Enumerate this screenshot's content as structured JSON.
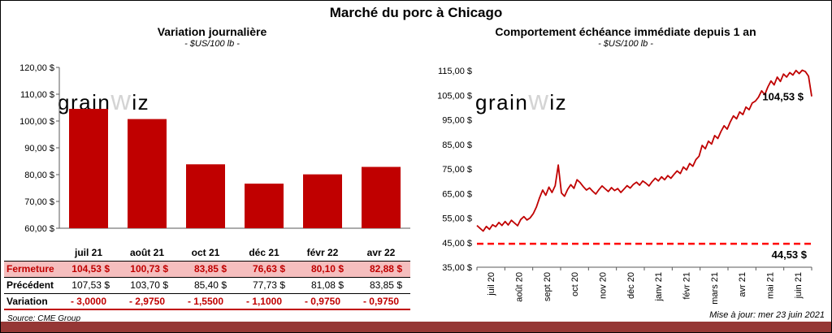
{
  "page": {
    "title": "Marché du porc à Chicago"
  },
  "watermark": "grainwiz",
  "footer": {
    "source": "Source: CME Group",
    "updated": "Mise à jour: mer 23 juin 2021"
  },
  "colors": {
    "bar": "#C00000",
    "line": "#C00000",
    "dashed": "#FF0000",
    "red_text": "#C00000",
    "pink_row": "#F5BEBE",
    "bottom_bar": "#953735",
    "axis": "#595959",
    "watermark": "#C9C9C9"
  },
  "chart_data": [
    {
      "type": "bar",
      "title": "Variation journalière",
      "subtitle": "- $US/100 lb -",
      "categories": [
        "juil 21",
        "août 21",
        "oct 21",
        "déc 21",
        "févr 22",
        "avr 22"
      ],
      "values": [
        104.53,
        100.73,
        83.85,
        76.63,
        80.1,
        82.88
      ],
      "ylim": [
        60,
        120
      ],
      "ytick_step": 10,
      "grid": false,
      "legend": "none"
    },
    {
      "type": "line",
      "title": "Comportement échéance immédiate depuis 1 an",
      "subtitle": "- $US/100 lb -",
      "x_categories": [
        "juil 20",
        "août 20",
        "sept 20",
        "oct 20",
        "nov 20",
        "déc 20",
        "janv 21",
        "févr 21",
        "mars 21",
        "avr 21",
        "mai 21",
        "juin 21"
      ],
      "values": [
        52.0,
        50.8,
        49.7,
        51.6,
        50.4,
        52.3,
        51.5,
        53.2,
        52.0,
        53.6,
        52.2,
        54.1,
        53.0,
        51.9,
        54.4,
        55.6,
        54.2,
        55.1,
        56.8,
        59.5,
        63.2,
        66.4,
        64.3,
        67.6,
        65.4,
        68.2,
        76.6,
        65.2,
        63.9,
        66.7,
        68.6,
        67.1,
        70.6,
        69.4,
        67.8,
        66.4,
        67.3,
        65.9,
        64.8,
        66.6,
        68.1,
        66.9,
        65.8,
        67.4,
        66.2,
        67.0,
        65.4,
        66.8,
        68.2,
        67.2,
        68.7,
        69.6,
        68.4,
        70.1,
        69.2,
        68.1,
        69.8,
        71.2,
        70.1,
        71.8,
        70.6,
        72.3,
        71.2,
        72.8,
        74.2,
        73.1,
        75.8,
        74.6,
        77.2,
        76.1,
        78.8,
        80.2,
        84.6,
        83.2,
        86.3,
        85.1,
        88.6,
        87.4,
        90.2,
        92.6,
        91.2,
        94.2,
        96.6,
        95.4,
        98.2,
        97.1,
        100.2,
        99.1,
        101.8,
        102.6,
        104.2,
        106.8,
        105.2,
        108.4,
        110.8,
        109.2,
        112.4,
        110.6,
        113.6,
        112.4,
        114.2,
        113.2,
        115.1,
        113.8,
        115.2,
        114.6,
        112.8,
        104.53
      ],
      "ylim": [
        35,
        115
      ],
      "ytick_step": 10,
      "grid": false,
      "legend": "none",
      "reference_line": {
        "value": 44.53,
        "label": "44,53 $"
      },
      "last_point_label": "104,53 $"
    }
  ],
  "table": {
    "header": [
      "juil 21",
      "août 21",
      "oct 21",
      "déc 21",
      "févr 22",
      "avr 22"
    ],
    "rows": [
      {
        "label": "Fermeture",
        "style": "close",
        "values": [
          "104,53  $",
          "100,73  $",
          "83,85  $",
          "76,63  $",
          "80,10  $",
          "82,88  $"
        ]
      },
      {
        "label": "Précédent",
        "style": "previous",
        "values": [
          "107,53  $",
          "103,70  $",
          "85,40  $",
          "77,73  $",
          "81,08  $",
          "83,85  $"
        ]
      },
      {
        "label": "Variation",
        "style": "variation",
        "values": [
          "- 3,0000",
          "- 2,9750",
          "- 1,5500",
          "- 1,1000",
          "- 0,9750",
          "- 0,9750"
        ]
      }
    ]
  }
}
